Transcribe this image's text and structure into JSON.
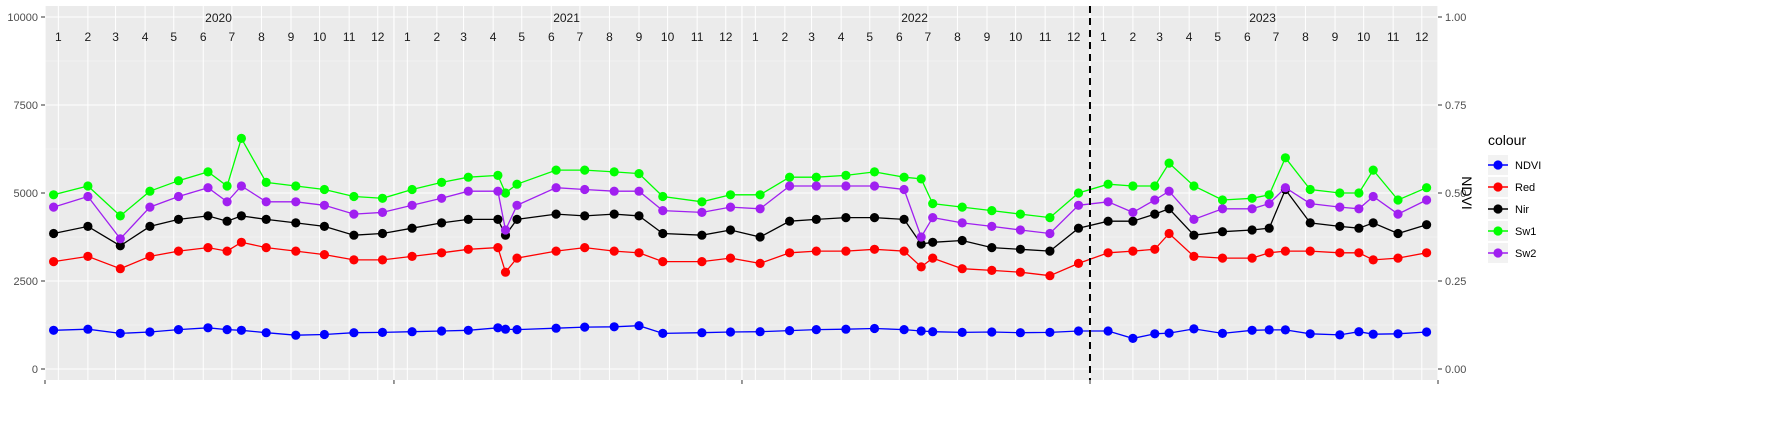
{
  "chart_data": {
    "type": "line",
    "title": "",
    "xlabel": "",
    "ylabel": "",
    "y2label": "NDVI",
    "ylim": [
      0,
      10000
    ],
    "y2lim": [
      0,
      1
    ],
    "yticks": [
      "0",
      "2500",
      "5000",
      "7500",
      "10000"
    ],
    "y2ticks": [
      "0.00",
      "0.25",
      "0.50",
      "0.75",
      "1.00"
    ],
    "grid": true,
    "years": [
      "2020",
      "2021",
      "2022",
      "2023"
    ],
    "months": [
      "1",
      "2",
      "3",
      "4",
      "5",
      "6",
      "7",
      "8",
      "9",
      "10",
      "11",
      "12"
    ],
    "x_range": [
      "2020-01-01",
      "2024-01-01"
    ],
    "vline_date": "2023-01-01",
    "legend": {
      "title": "colour",
      "placement": "right",
      "entries": [
        "NDVI",
        "Red",
        "Nir",
        "Sw1",
        "Sw2"
      ]
    },
    "colors": {
      "NDVI": "#0000ff",
      "Red": "#ff0000",
      "Nir": "#000000",
      "Sw1": "#00ff00",
      "Sw2": "#a020f0"
    },
    "x": [
      "2020-01-10",
      "2020-02-15",
      "2020-03-20",
      "2020-04-20",
      "2020-05-20",
      "2020-06-20",
      "2020-07-10",
      "2020-07-25",
      "2020-08-20",
      "2020-09-20",
      "2020-10-20",
      "2020-11-20",
      "2020-12-20",
      "2021-01-20",
      "2021-02-20",
      "2021-03-20",
      "2021-04-20",
      "2021-04-28",
      "2021-05-10",
      "2021-06-20",
      "2021-07-20",
      "2021-08-20",
      "2021-09-15",
      "2021-10-10",
      "2021-11-20",
      "2021-12-20",
      "2022-01-20",
      "2022-02-20",
      "2022-03-20",
      "2022-04-20",
      "2022-05-20",
      "2022-06-20",
      "2022-07-08",
      "2022-07-20",
      "2022-08-20",
      "2022-09-20",
      "2022-10-20",
      "2022-11-20",
      "2022-12-20",
      "2023-01-20",
      "2023-02-15",
      "2023-03-10",
      "2023-03-25",
      "2023-04-20",
      "2023-05-20",
      "2023-06-20",
      "2023-07-08",
      "2023-07-25",
      "2023-08-20",
      "2023-09-20",
      "2023-10-10",
      "2023-10-25",
      "2023-11-20",
      "2023-12-20"
    ],
    "series": [
      {
        "name": "NDVI",
        "axis": "right",
        "values": [
          0.11,
          0.113,
          0.101,
          0.105,
          0.112,
          0.117,
          0.112,
          0.11,
          0.103,
          0.096,
          0.098,
          0.103,
          0.104,
          0.106,
          0.108,
          0.11,
          0.117,
          0.113,
          0.112,
          0.116,
          0.119,
          0.12,
          0.123,
          0.101,
          0.103,
          0.105,
          0.106,
          0.109,
          0.112,
          0.113,
          0.115,
          0.112,
          0.108,
          0.106,
          0.104,
          0.105,
          0.103,
          0.104,
          0.108,
          0.108,
          0.087,
          0.1,
          0.102,
          0.114,
          0.101,
          0.11,
          0.111,
          0.111,
          0.1,
          0.097,
          0.106,
          0.099,
          0.1,
          0.105
        ]
      },
      {
        "name": "Red",
        "axis": "left",
        "values": [
          3050,
          3200,
          2850,
          3200,
          3350,
          3450,
          3350,
          3600,
          3450,
          3350,
          3250,
          3100,
          3100,
          3200,
          3300,
          3400,
          3450,
          2750,
          3150,
          3350,
          3450,
          3350,
          3300,
          3050,
          3050,
          3150,
          3000,
          3300,
          3350,
          3350,
          3400,
          3350,
          2900,
          3150,
          2850,
          2800,
          2750,
          2650,
          3000,
          3300,
          3350,
          3400,
          3850,
          3200,
          3150,
          3150,
          3300,
          3350,
          3350,
          3300,
          3300,
          3100,
          3150,
          3300
        ]
      },
      {
        "name": "Nir",
        "axis": "left",
        "values": [
          3850,
          4050,
          3500,
          4050,
          4250,
          4350,
          4200,
          4350,
          4250,
          4150,
          4050,
          3800,
          3850,
          4000,
          4150,
          4250,
          4250,
          3800,
          4250,
          4400,
          4350,
          4400,
          4350,
          3850,
          3800,
          3950,
          3750,
          4200,
          4250,
          4300,
          4300,
          4250,
          3550,
          3600,
          3650,
          3450,
          3400,
          3350,
          4000,
          4200,
          4200,
          4400,
          4550,
          3800,
          3900,
          3950,
          4000,
          5100,
          4150,
          4050,
          4000,
          4150,
          3850,
          4100
        ]
      },
      {
        "name": "Sw1",
        "axis": "left",
        "values": [
          4950,
          5200,
          4350,
          5050,
          5350,
          5600,
          5200,
          6550,
          5300,
          5200,
          5100,
          4900,
          4850,
          5100,
          5300,
          5450,
          5500,
          5000,
          5250,
          5650,
          5650,
          5600,
          5550,
          4900,
          4750,
          4950,
          4950,
          5450,
          5450,
          5500,
          5600,
          5450,
          5400,
          4700,
          4600,
          4500,
          4400,
          4300,
          5000,
          5250,
          5200,
          5200,
          5850,
          5200,
          4800,
          4850,
          4950,
          6000,
          5100,
          5000,
          5000,
          5650,
          4800,
          5150
        ]
      },
      {
        "name": "Sw2",
        "axis": "left",
        "values": [
          4600,
          4900,
          3700,
          4600,
          4900,
          5150,
          4750,
          5200,
          4750,
          4750,
          4650,
          4400,
          4450,
          4650,
          4850,
          5050,
          5050,
          3950,
          4650,
          5150,
          5100,
          5050,
          5050,
          4500,
          4450,
          4600,
          4550,
          5200,
          5200,
          5200,
          5200,
          5100,
          3750,
          4300,
          4150,
          4050,
          3950,
          3850,
          4650,
          4750,
          4450,
          4800,
          5050,
          4250,
          4550,
          4550,
          4700,
          5150,
          4700,
          4600,
          4550,
          4900,
          4400,
          4800
        ]
      }
    ]
  }
}
